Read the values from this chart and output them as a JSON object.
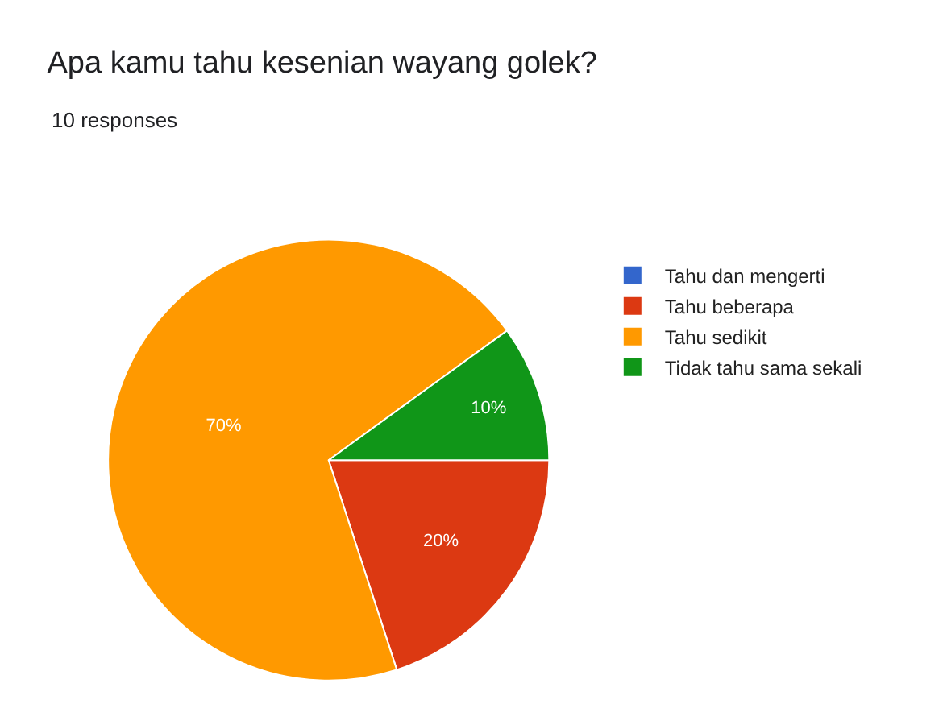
{
  "chart_data": {
    "type": "pie",
    "title": "Apa kamu tahu kesenian wayang golek?",
    "subtitle": "10 responses",
    "categories": [
      "Tahu dan mengerti",
      "Tahu beberapa",
      "Tahu sedikit",
      "Tidak tahu sama sekali"
    ],
    "values": [
      0,
      20,
      70,
      10
    ],
    "colors": [
      "#3366cc",
      "#dc3912",
      "#ff9900",
      "#109618"
    ],
    "value_labels": [
      null,
      "20%",
      "70%",
      "10%"
    ],
    "legend": "right"
  }
}
